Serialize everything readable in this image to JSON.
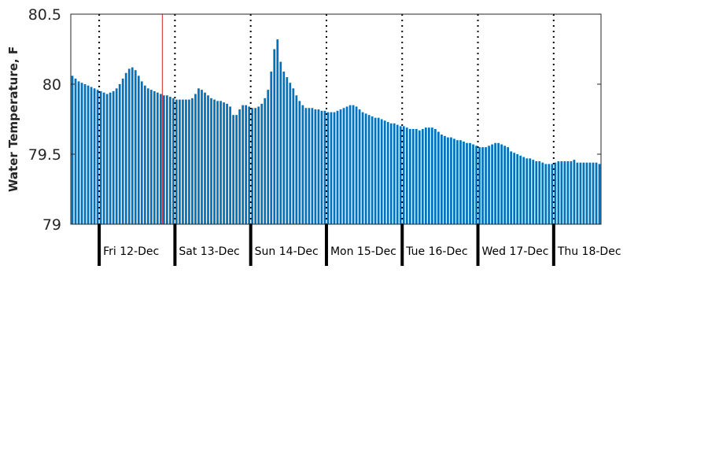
{
  "chart_data": {
    "type": "bar",
    "title": "",
    "xlabel": "",
    "ylabel": "Water Temperature, F",
    "ylim": [
      79,
      80.5
    ],
    "yticks": [
      79,
      79.5,
      80,
      80.5
    ],
    "ytick_labels": [
      "79",
      "79.5",
      "80",
      "80.5"
    ],
    "x_unit": "hours since start of record",
    "x_range": [
      0,
      168
    ],
    "bar_color": "#0072BD",
    "grid": false,
    "day_boundaries_hours": [
      9,
      33,
      57,
      81,
      105,
      129,
      153
    ],
    "day_labels": [
      "Fri 12-Dec",
      "Sat 13-Dec",
      "Sun 14-Dec",
      "Mon 15-Dec",
      "Tue 16-Dec",
      "Wed 17-Dec",
      "Thu 18-Dec"
    ],
    "current_time_hour": 29,
    "current_time_color": "#D62728",
    "series": [
      {
        "name": "",
        "values": [
          80.06,
          80.04,
          80.02,
          80.01,
          80.0,
          79.99,
          79.98,
          79.97,
          79.96,
          79.95,
          79.94,
          79.93,
          79.94,
          79.95,
          79.97,
          80.0,
          80.04,
          80.08,
          80.11,
          80.12,
          80.1,
          80.06,
          80.02,
          79.99,
          79.97,
          79.96,
          79.95,
          79.94,
          79.93,
          79.92,
          79.92,
          79.91,
          79.9,
          79.89,
          79.89,
          79.89,
          79.89,
          79.89,
          79.9,
          79.93,
          79.97,
          79.96,
          79.94,
          79.92,
          79.9,
          79.89,
          79.88,
          79.88,
          79.87,
          79.86,
          79.84,
          79.78,
          79.78,
          79.82,
          79.85,
          79.85,
          79.84,
          79.83,
          79.83,
          79.84,
          79.86,
          79.9,
          79.96,
          80.09,
          80.25,
          80.32,
          80.16,
          80.09,
          80.05,
          80.01,
          79.97,
          79.92,
          79.88,
          79.85,
          79.83,
          79.83,
          79.83,
          79.82,
          79.82,
          79.81,
          79.81,
          79.8,
          79.8,
          79.8,
          79.81,
          79.82,
          79.83,
          79.84,
          79.85,
          79.85,
          79.84,
          79.82,
          79.8,
          79.79,
          79.78,
          79.77,
          79.76,
          79.76,
          79.75,
          79.74,
          79.73,
          79.72,
          79.72,
          79.71,
          79.7,
          79.7,
          79.69,
          79.68,
          79.68,
          79.68,
          79.67,
          79.68,
          79.69,
          79.69,
          79.69,
          79.68,
          79.66,
          79.64,
          79.63,
          79.62,
          79.62,
          79.61,
          79.6,
          79.6,
          79.59,
          79.58,
          79.58,
          79.57,
          79.56,
          79.55,
          79.55,
          79.55,
          79.56,
          79.57,
          79.58,
          79.58,
          79.57,
          79.56,
          79.55,
          79.52,
          79.51,
          79.5,
          79.49,
          79.48,
          79.47,
          79.47,
          79.46,
          79.45,
          79.45,
          79.44,
          79.43,
          79.43,
          79.43,
          79.44,
          79.45,
          79.45,
          79.45,
          79.45,
          79.45,
          79.46,
          79.44,
          79.44,
          79.44,
          79.44,
          79.44,
          79.44,
          79.44,
          79.43
        ]
      }
    ]
  }
}
